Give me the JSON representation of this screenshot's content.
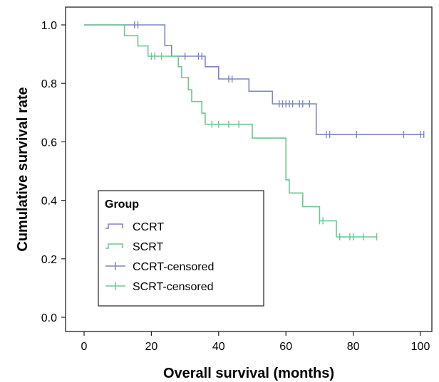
{
  "chart_data": {
    "type": "line",
    "subtype": "kaplan-meier step",
    "title": "",
    "xlabel": "Overall survival (months)",
    "ylabel": "Cumulative survival rate",
    "xlim": [
      0,
      100
    ],
    "ylim": [
      0,
      1.0
    ],
    "x_ticks": [
      "0",
      "20",
      "40",
      "60",
      "80",
      "100"
    ],
    "y_ticks": [
      "0.0",
      "0.2",
      "0.4",
      "0.6",
      "0.8",
      "1.0"
    ],
    "grid": false,
    "legend_position": "bottom-left",
    "legend": {
      "title": "Group",
      "entries": [
        "CCRT",
        "SCRT",
        "CCRT-censored",
        "SCRT-censored"
      ]
    },
    "series": [
      {
        "name": "CCRT",
        "color": "#7b86c4",
        "steps": [
          [
            0,
            1.0
          ],
          [
            24,
            1.0
          ],
          [
            24,
            0.93
          ],
          [
            26,
            0.93
          ],
          [
            26,
            0.893
          ],
          [
            36,
            0.893
          ],
          [
            36,
            0.857
          ],
          [
            40,
            0.857
          ],
          [
            40,
            0.815
          ],
          [
            49,
            0.815
          ],
          [
            49,
            0.773
          ],
          [
            56,
            0.773
          ],
          [
            56,
            0.73
          ],
          [
            69,
            0.73
          ],
          [
            69,
            0.625
          ],
          [
            101,
            0.625
          ]
        ],
        "censored": [
          [
            15,
            1.0
          ],
          [
            16,
            1.0
          ],
          [
            30,
            0.893
          ],
          [
            34,
            0.893
          ],
          [
            35,
            0.893
          ],
          [
            43,
            0.815
          ],
          [
            44,
            0.815
          ],
          [
            58,
            0.73
          ],
          [
            59,
            0.73
          ],
          [
            60,
            0.73
          ],
          [
            61,
            0.73
          ],
          [
            62,
            0.73
          ],
          [
            64,
            0.73
          ],
          [
            65,
            0.73
          ],
          [
            67,
            0.73
          ],
          [
            72,
            0.625
          ],
          [
            73,
            0.625
          ],
          [
            81,
            0.625
          ],
          [
            95,
            0.625
          ],
          [
            100,
            0.625
          ],
          [
            101,
            0.625
          ]
        ]
      },
      {
        "name": "SCRT",
        "color": "#6cc78e",
        "steps": [
          [
            0,
            1.0
          ],
          [
            12,
            1.0
          ],
          [
            12,
            0.963
          ],
          [
            16,
            0.963
          ],
          [
            16,
            0.928
          ],
          [
            19,
            0.928
          ],
          [
            19,
            0.893
          ],
          [
            28,
            0.893
          ],
          [
            28,
            0.857
          ],
          [
            29,
            0.857
          ],
          [
            29,
            0.82
          ],
          [
            31,
            0.82
          ],
          [
            31,
            0.778
          ],
          [
            32,
            0.778
          ],
          [
            32,
            0.738
          ],
          [
            35,
            0.738
          ],
          [
            35,
            0.698
          ],
          [
            36,
            0.698
          ],
          [
            36,
            0.66
          ],
          [
            50,
            0.66
          ],
          [
            50,
            0.613
          ],
          [
            60,
            0.613
          ],
          [
            60,
            0.47
          ],
          [
            61,
            0.47
          ],
          [
            61,
            0.425
          ],
          [
            65,
            0.425
          ],
          [
            65,
            0.378
          ],
          [
            70,
            0.378
          ],
          [
            70,
            0.33
          ],
          [
            75,
            0.33
          ],
          [
            75,
            0.275
          ],
          [
            87,
            0.275
          ]
        ],
        "censored": [
          [
            20,
            0.893
          ],
          [
            21,
            0.893
          ],
          [
            23,
            0.893
          ],
          [
            38,
            0.66
          ],
          [
            40,
            0.66
          ],
          [
            43,
            0.66
          ],
          [
            46,
            0.66
          ],
          [
            70,
            0.33
          ],
          [
            71,
            0.33
          ],
          [
            76,
            0.275
          ],
          [
            79,
            0.275
          ],
          [
            80,
            0.275
          ],
          [
            83,
            0.275
          ],
          [
            87,
            0.275
          ]
        ]
      }
    ]
  }
}
